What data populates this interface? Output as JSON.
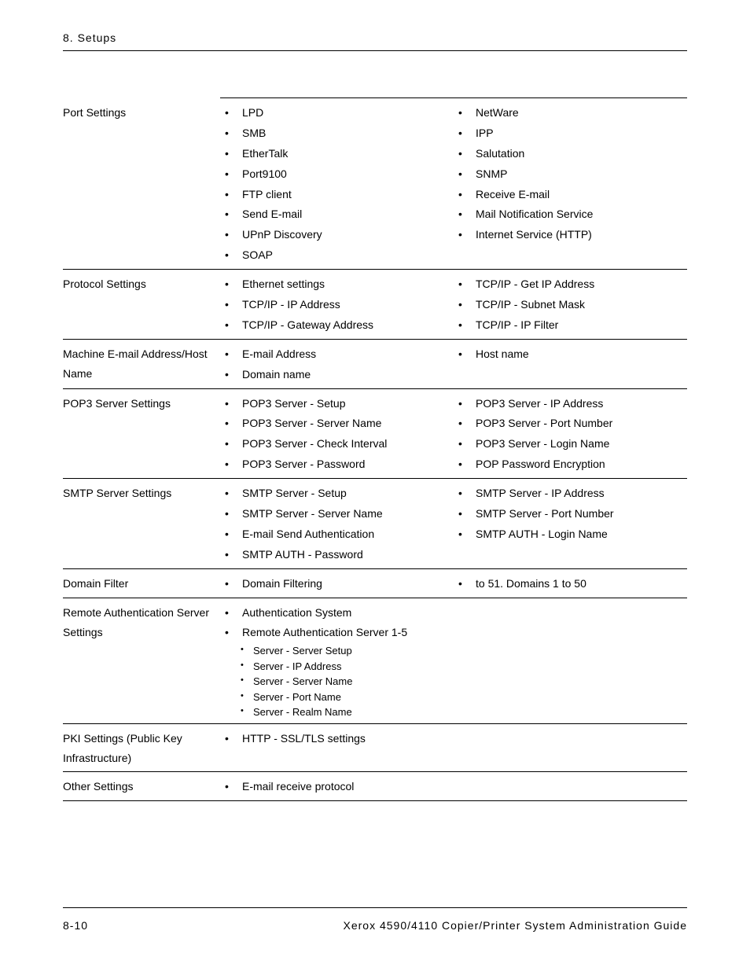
{
  "header": {
    "chapter": "8. Setups"
  },
  "footer": {
    "page_num": "8-10",
    "doc_title": "Xerox 4590/4110 Copier/Printer System Administration Guide"
  },
  "rows": [
    {
      "label": "Port Settings",
      "left": [
        "LPD",
        "SMB",
        "EtherTalk",
        "Port9100",
        "FTP client",
        "Send E-mail",
        "UPnP Discovery",
        "SOAP"
      ],
      "right": [
        "NetWare",
        "IPP",
        "Salutation",
        "SNMP",
        "Receive E-mail",
        "Mail Notification Service",
        "Internet Service (HTTP)"
      ]
    },
    {
      "label": "Protocol Settings",
      "left": [
        "Ethernet settings",
        "TCP/IP - IP Address",
        "TCP/IP - Gateway Address"
      ],
      "right": [
        "TCP/IP - Get IP Address",
        "TCP/IP - Subnet Mask",
        "TCP/IP - IP Filter"
      ]
    },
    {
      "label": "Machine E-mail Address/Host Name",
      "left": [
        "E-mail Address",
        "Domain name"
      ],
      "right": [
        "Host name"
      ]
    },
    {
      "label": "POP3 Server Settings",
      "left": [
        "POP3 Server - Setup",
        "POP3 Server - Server Name",
        "POP3 Server - Check Interval",
        "POP3 Server - Password"
      ],
      "right": [
        "POP3 Server - IP Address",
        "POP3 Server - Port Number",
        "POP3 Server - Login Name",
        "POP Password Encryption"
      ]
    },
    {
      "label": "SMTP Server Settings",
      "left": [
        "SMTP Server - Setup",
        "SMTP Server - Server Name",
        "E-mail Send Authentication",
        "SMTP AUTH - Password"
      ],
      "right": [
        "SMTP Server - IP Address",
        "SMTP Server - Port Number",
        "SMTP AUTH - Login Name"
      ]
    },
    {
      "label": "Domain Filter",
      "left": [
        "Domain Filtering"
      ],
      "right": [
        "to 51. Domains 1 to 50"
      ]
    },
    {
      "label": "Remote Authentication Server Settings",
      "nested": {
        "top": "Authentication System",
        "heading": "Remote Authentication Server 1-5",
        "sub": [
          "Server - Server Setup",
          "Server - IP Address",
          "Server - Server Name",
          "Server - Port Name",
          "Server - Realm Name"
        ]
      }
    },
    {
      "label": "PKI Settings (Public Key Infrastructure)",
      "left": [
        "HTTP - SSL/TLS settings"
      ]
    },
    {
      "label": "Other Settings",
      "left": [
        "E-mail receive protocol"
      ]
    }
  ]
}
